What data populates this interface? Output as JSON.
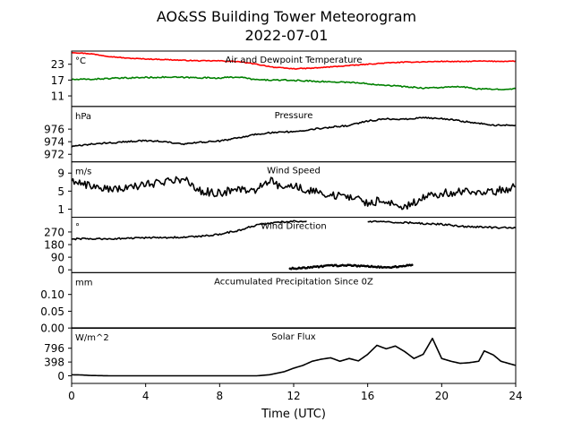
{
  "chart_data": {
    "type": "line",
    "title": "AO&SS Building Tower Meteorogram",
    "subtitle": "2022-07-01",
    "xlabel": "Time (UTC)",
    "xlim": [
      0,
      24
    ],
    "xticks": [
      "0",
      "4",
      "8",
      "12",
      "16",
      "20",
      "24"
    ],
    "panels": [
      {
        "id": "temp",
        "title": "Air and Dewpoint Temperature",
        "unit": "°C",
        "ylim": [
          7,
          28
        ],
        "yticks": [
          11,
          17,
          23
        ],
        "series": [
          {
            "color": "#ff0000",
            "noise": 0.15,
            "points": [
              [
                0,
                27.5
              ],
              [
                1,
                27
              ],
              [
                2,
                26
              ],
              [
                3,
                25.3
              ],
              [
                4,
                25
              ],
              [
                5,
                24.8
              ],
              [
                6,
                24.5
              ],
              [
                7,
                24.3
              ],
              [
                8,
                24.3
              ],
              [
                9,
                24
              ],
              [
                10,
                23
              ],
              [
                11,
                21.8
              ],
              [
                12,
                21.3
              ],
              [
                13,
                21.5
              ],
              [
                14,
                22
              ],
              [
                15,
                22.5
              ],
              [
                16,
                23
              ],
              [
                17,
                23.5
              ],
              [
                18,
                23.8
              ],
              [
                19,
                23.9
              ],
              [
                20,
                24.1
              ],
              [
                21,
                24
              ],
              [
                22,
                24.2
              ],
              [
                23,
                24.1
              ],
              [
                24,
                24.2
              ]
            ]
          },
          {
            "color": "#008000",
            "noise": 0.25,
            "points": [
              [
                0,
                17.2
              ],
              [
                1,
                17.3
              ],
              [
                2,
                17.6
              ],
              [
                3,
                17.8
              ],
              [
                4,
                18
              ],
              [
                5,
                18.1
              ],
              [
                6,
                18
              ],
              [
                7,
                17.9
              ],
              [
                8,
                17.8
              ],
              [
                9,
                18.2
              ],
              [
                10,
                17.1
              ],
              [
                11,
                17
              ],
              [
                12,
                16.9
              ],
              [
                13,
                16.6
              ],
              [
                14,
                16.3
              ],
              [
                15,
                16.2
              ],
              [
                16,
                15.6
              ],
              [
                17,
                15.1
              ],
              [
                18,
                14.5
              ],
              [
                19,
                14
              ],
              [
                20,
                14.2
              ],
              [
                21,
                14.5
              ],
              [
                22,
                13.6
              ],
              [
                23,
                13.5
              ],
              [
                24,
                13.8
              ]
            ]
          }
        ]
      },
      {
        "id": "pressure",
        "title": "Pressure",
        "unit": "hPa",
        "ylim": [
          970.8,
          979.6
        ],
        "yticks": [
          972,
          974,
          976
        ],
        "series": [
          {
            "color": "#000000",
            "noise": 0.12,
            "points": [
              [
                0,
                973.2
              ],
              [
                1,
                973.6
              ],
              [
                2,
                973.8
              ],
              [
                3,
                974
              ],
              [
                4,
                974.2
              ],
              [
                5,
                974
              ],
              [
                6,
                973.6
              ],
              [
                7,
                973.9
              ],
              [
                8,
                974.1
              ],
              [
                9,
                974.6
              ],
              [
                10,
                975.2
              ],
              [
                11,
                975.5
              ],
              [
                12,
                975.6
              ],
              [
                13,
                976
              ],
              [
                14,
                976.3
              ],
              [
                15,
                976.6
              ],
              [
                16,
                977.3
              ],
              [
                17,
                977.6
              ],
              [
                18,
                977.6
              ],
              [
                19,
                977.8
              ],
              [
                20,
                977.7
              ],
              [
                21,
                977.3
              ],
              [
                22,
                976.9
              ],
              [
                23,
                976.6
              ],
              [
                24,
                976.6
              ]
            ]
          }
        ]
      },
      {
        "id": "wind_speed",
        "title": "Wind Speed",
        "unit": "m/s",
        "ylim": [
          -0.8,
          11.5
        ],
        "yticks": [
          1,
          5,
          9
        ],
        "series": [
          {
            "color": "#000000",
            "noise": 0.9,
            "points": [
              [
                0,
                7.5
              ],
              [
                1,
                6.2
              ],
              [
                2,
                5.5
              ],
              [
                3,
                5.5
              ],
              [
                4,
                6.5
              ],
              [
                5,
                7
              ],
              [
                6,
                7.8
              ],
              [
                7,
                5
              ],
              [
                8,
                4.5
              ],
              [
                9,
                5.5
              ],
              [
                10,
                5.2
              ],
              [
                10.7,
                7.5
              ],
              [
                11,
                6.5
              ],
              [
                12,
                6
              ],
              [
                13,
                5
              ],
              [
                14,
                4.2
              ],
              [
                15,
                3.5
              ],
              [
                16,
                2.5
              ],
              [
                17,
                3
              ],
              [
                18,
                1.5
              ],
              [
                19,
                3.5
              ],
              [
                20,
                4.5
              ],
              [
                21,
                4.8
              ],
              [
                22,
                4.5
              ],
              [
                23,
                5
              ],
              [
                24,
                6
              ]
            ]
          }
        ]
      },
      {
        "id": "wind_dir",
        "title": "Wind Direction",
        "unit": "°",
        "ylim": [
          -20,
          375
        ],
        "yticks": [
          0,
          90,
          180,
          270
        ],
        "series": [
          {
            "color": "#000000",
            "noise": 6,
            "points": [
              [
                0,
                220
              ],
              [
                1,
                222
              ],
              [
                2,
                220
              ],
              [
                3,
                225
              ],
              [
                4,
                228
              ],
              [
                5,
                230
              ],
              [
                6,
                232
              ],
              [
                7,
                238
              ],
              [
                8,
                255
              ],
              [
                9,
                280
              ],
              [
                10,
                320
              ],
              [
                11,
                338
              ],
              [
                12,
                345
              ],
              [
                12.7,
                348
              ]
            ]
          },
          {
            "color": "#000000",
            "noise": 6,
            "points": [
              [
                16,
                345
              ],
              [
                17,
                340
              ],
              [
                18,
                338
              ],
              [
                19,
                330
              ],
              [
                20,
                325
              ],
              [
                21,
                310
              ],
              [
                22,
                305
              ],
              [
                23,
                300
              ],
              [
                24,
                300
              ]
            ]
          },
          {
            "color": "#000000",
            "noise": 5,
            "dotted": true,
            "points": [
              [
                11.8,
                10
              ],
              [
                12.5,
                12
              ],
              [
                13,
                20
              ],
              [
                14,
                30
              ],
              [
                15,
                32
              ],
              [
                16,
                25
              ],
              [
                17,
                15
              ],
              [
                18,
                30
              ],
              [
                18.4,
                35
              ]
            ]
          }
        ]
      },
      {
        "id": "precip",
        "title": "Accumulated Precipitation Since 0Z",
        "unit": "mm",
        "ylim": [
          0,
          0.165
        ],
        "yticks": [
          0.0,
          0.05,
          0.1
        ],
        "series": [
          {
            "color": "#000000",
            "noise": 0,
            "points": [
              [
                0,
                0
              ],
              [
                24,
                0
              ]
            ]
          }
        ]
      },
      {
        "id": "solar",
        "title": "Solar Flux",
        "unit": "W/m^2",
        "ylim": [
          -220,
          1380
        ],
        "yticks": [
          0,
          398,
          796
        ],
        "series": [
          {
            "color": "#000000",
            "noise": 0,
            "points": [
              [
                0,
                30
              ],
              [
                0.5,
                25
              ],
              [
                1,
                10
              ],
              [
                2,
                0
              ],
              [
                4,
                0
              ],
              [
                6,
                0
              ],
              [
                8,
                0
              ],
              [
                10,
                0
              ],
              [
                10.7,
                30
              ],
              [
                11.5,
                120
              ],
              [
                12,
                220
              ],
              [
                12.5,
                300
              ],
              [
                13,
                420
              ],
              [
                13.5,
                480
              ],
              [
                14,
                520
              ],
              [
                14.5,
                420
              ],
              [
                15,
                500
              ],
              [
                15.5,
                430
              ],
              [
                16,
                620
              ],
              [
                16.5,
                880
              ],
              [
                17,
                780
              ],
              [
                17.5,
                860
              ],
              [
                18,
                700
              ],
              [
                18.5,
                500
              ],
              [
                19,
                620
              ],
              [
                19.5,
                1080
              ],
              [
                20,
                500
              ],
              [
                20.5,
                420
              ],
              [
                21,
                360
              ],
              [
                21.5,
                380
              ],
              [
                22,
                420
              ],
              [
                22.3,
                720
              ],
              [
                22.8,
                600
              ],
              [
                23.2,
                420
              ],
              [
                24,
                300
              ]
            ]
          }
        ]
      }
    ]
  }
}
